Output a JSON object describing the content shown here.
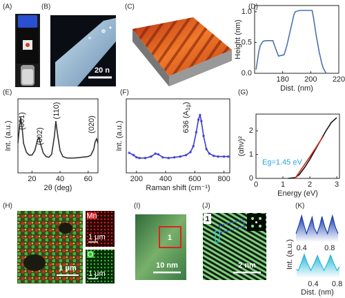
{
  "panel_labels": [
    "(A)",
    "(B)",
    "(C)",
    "(D)",
    "(E)",
    "(F)",
    "(G)",
    "(H)",
    "(I)",
    "(J)",
    "(K)"
  ],
  "images": {
    "B": {
      "scale_bar": "20 n"
    },
    "H": {
      "scale_bar": "1 μm",
      "mn_label": "Mn",
      "mn_scale_bar": "1 μm",
      "o_label": "O",
      "o_scale_bar": "1 μm"
    },
    "I": {
      "region": "1",
      "scale_bar": "10 nm"
    },
    "J": {
      "region": "1",
      "scale_bar": "2 nm"
    }
  },
  "chart_data": [
    {
      "type": "line",
      "xlabel": "Dist. (nm)",
      "ylabel": "Height (nm)",
      "xlim": [
        160,
        220
      ],
      "ylim": [
        0,
        1.1
      ],
      "xticks": [
        180,
        200,
        220
      ],
      "yticks": [
        {
          "value": 0,
          "label": "0.0"
        },
        {
          "value": 0.5,
          "label": "0.5"
        },
        {
          "value": 1,
          "label": "1.0"
        }
      ],
      "x": [
        161,
        163,
        164,
        166,
        168,
        171,
        173,
        175,
        177,
        179,
        181,
        183,
        184,
        186,
        188,
        189,
        192,
        196,
        201,
        202,
        204,
        206,
        208,
        209,
        211
      ],
      "series": [
        {
          "color": "#4a72b0",
          "values": [
            0.06,
            0.35,
            0.45,
            0.52,
            0.53,
            0.53,
            0.53,
            0.4,
            0.28,
            0.29,
            0.3,
            0.45,
            0.55,
            0.75,
            0.95,
            1.0,
            1.02,
            1.02,
            1.02,
            0.9,
            0.6,
            0.35,
            0.15,
            0.08,
            0.0
          ]
        }
      ]
    },
    {
      "type": "line",
      "xlabel": "2θ (deg)",
      "ylabel": "Int. (a.u.)",
      "xlim": [
        10,
        67
      ],
      "ylim": [
        0,
        1
      ],
      "xticks": [
        20,
        40,
        60
      ],
      "annotations": [
        "(001)",
        "(002)",
        "(110)",
        "(020)"
      ],
      "x": [
        10,
        11,
        12,
        13,
        14,
        16,
        18,
        20,
        22,
        24,
        25,
        26,
        28,
        30,
        32,
        34,
        36,
        37,
        38,
        40,
        42,
        45,
        50,
        55,
        60,
        62,
        64,
        65,
        66,
        67
      ],
      "series": [
        {
          "color": "#333333",
          "values": [
            0.4,
            0.6,
            0.75,
            0.6,
            0.4,
            0.28,
            0.24,
            0.24,
            0.3,
            0.45,
            0.48,
            0.4,
            0.27,
            0.22,
            0.21,
            0.25,
            0.5,
            0.7,
            0.55,
            0.3,
            0.22,
            0.2,
            0.2,
            0.21,
            0.22,
            0.24,
            0.32,
            0.42,
            0.46,
            0.4
          ]
        }
      ]
    },
    {
      "type": "line",
      "xlabel": "Raman shift (cm⁻¹)",
      "ylabel": "Int. (a.u.)",
      "xlim": [
        130,
        840
      ],
      "ylim": [
        0,
        1
      ],
      "xticks": [
        200,
        400,
        600,
        800
      ],
      "markers": true,
      "annotations": [
        "636 (A",
        "1g",
        ")"
      ],
      "x": [
        150,
        180,
        200,
        220,
        260,
        300,
        330,
        350,
        380,
        420,
        460,
        500,
        540,
        570,
        590,
        610,
        625,
        636,
        645,
        660,
        680,
        700,
        730,
        760,
        800,
        830
      ],
      "series": [
        {
          "color": "#3a3ad0",
          "values": [
            0.27,
            0.24,
            0.21,
            0.2,
            0.2,
            0.22,
            0.26,
            0.25,
            0.21,
            0.2,
            0.21,
            0.22,
            0.24,
            0.28,
            0.36,
            0.55,
            0.72,
            0.78,
            0.7,
            0.5,
            0.32,
            0.26,
            0.23,
            0.22,
            0.22,
            0.22
          ]
        }
      ]
    },
    {
      "type": "line",
      "xlabel": "Energy (eV)",
      "ylabel": "(αhν)²",
      "xlim": [
        0,
        3.1
      ],
      "ylim": [
        0,
        2.7
      ],
      "xticks": [
        0,
        1,
        2,
        3
      ],
      "yticks": [
        0,
        1,
        2
      ],
      "annotations": [
        "Eg=1.45 eV"
      ],
      "annotation_color": "#2aa6d9",
      "x": [
        1.2,
        1.45,
        1.6,
        1.8,
        2,
        2.2,
        2.4,
        2.5,
        2.6,
        2.8,
        3
      ],
      "series": [
        {
          "color": "#111111",
          "values": [
            0,
            0.03,
            0.15,
            0.45,
            0.8,
            1.2,
            1.6,
            1.8,
            2.0,
            2.35,
            2.55
          ]
        },
        {
          "color": "#d8281e",
          "values": [
            null,
            0,
            0.24,
            0.58,
            0.91,
            1.25,
            1.6,
            1.77,
            null,
            null,
            null
          ]
        }
      ]
    },
    {
      "type": "line",
      "ylabel": "Int. (a.u.)",
      "fill": true,
      "xlim": [
        0.31,
        0.94
      ],
      "ylim": [
        0,
        1
      ],
      "xticks": [
        0.4,
        0.8
      ],
      "x": [
        0.32,
        0.36,
        0.4,
        0.44,
        0.47,
        0.51,
        0.55,
        0.58,
        0.62,
        0.66,
        0.69,
        0.73,
        0.77,
        0.8,
        0.84,
        0.88,
        0.92
      ],
      "series": [
        {
          "color": "#1a3fb0",
          "values": [
            0.3,
            0.6,
            0.95,
            0.55,
            0.3,
            0.6,
            0.9,
            0.5,
            0.3,
            0.6,
            0.92,
            0.55,
            0.3,
            0.6,
            0.95,
            0.55,
            0.3
          ]
        }
      ]
    },
    {
      "type": "line",
      "xlabel": "Dist. (nm)",
      "fill": true,
      "xlim": [
        0.1,
        0.84
      ],
      "ylim": [
        0,
        1
      ],
      "xticks": [
        0.4,
        0.8
      ],
      "x": [
        0.12,
        0.15,
        0.2,
        0.25,
        0.3,
        0.36,
        0.42,
        0.47,
        0.52,
        0.58,
        0.64,
        0.69,
        0.74,
        0.8,
        0.84
      ],
      "series": [
        {
          "color": "#27b8d8",
          "values": [
            0.35,
            0.3,
            0.6,
            0.95,
            0.6,
            0.3,
            0.6,
            0.9,
            0.6,
            0.3,
            0.6,
            0.92,
            0.6,
            0.3,
            0.45
          ]
        }
      ]
    }
  ]
}
